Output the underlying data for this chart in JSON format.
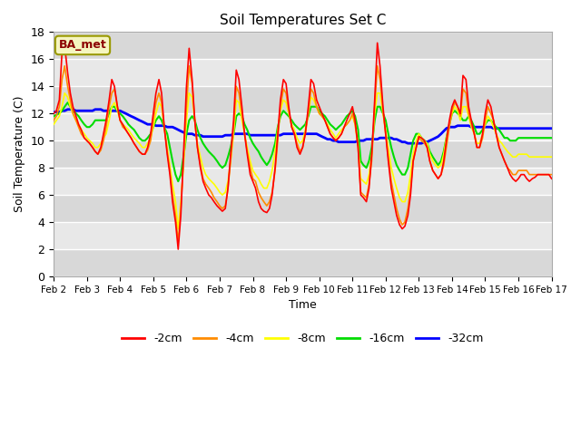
{
  "title": "Soil Temperatures Set C",
  "xlabel": "Time",
  "ylabel": "Soil Temperature (C)",
  "annotation": "BA_met",
  "ylim": [
    0,
    18
  ],
  "xlim": [
    0,
    15
  ],
  "xtick_labels": [
    "Feb 2",
    "Feb 3",
    "Feb 4",
    "Feb 5",
    "Feb 6",
    "Feb 7",
    "Feb 8",
    "Feb 9",
    "Feb 10",
    "Feb 11",
    "Feb 12",
    "Feb 13",
    "Feb 14",
    "Feb 15",
    "Feb 16",
    "Feb 17"
  ],
  "series_colors": {
    "-2cm": "#ff0000",
    "-4cm": "#ff8c00",
    "-8cm": "#ffff00",
    "-16cm": "#00dd00",
    "-32cm": "#0000ff"
  },
  "series_linewidths": {
    "-2cm": 1.2,
    "-4cm": 1.2,
    "-8cm": 1.2,
    "-16cm": 1.5,
    "-32cm": 2.0
  },
  "data": {
    "x_2cm": [
      0.0,
      0.08,
      0.17,
      0.25,
      0.33,
      0.42,
      0.5,
      0.58,
      0.67,
      0.75,
      0.83,
      0.92,
      1.0,
      1.08,
      1.17,
      1.25,
      1.33,
      1.42,
      1.5,
      1.58,
      1.67,
      1.75,
      1.83,
      1.92,
      2.0,
      2.08,
      2.17,
      2.25,
      2.33,
      2.42,
      2.5,
      2.58,
      2.67,
      2.75,
      2.83,
      2.92,
      3.0,
      3.08,
      3.17,
      3.25,
      3.33,
      3.42,
      3.5,
      3.58,
      3.67,
      3.75,
      3.83,
      3.92,
      4.0,
      4.08,
      4.17,
      4.25,
      4.33,
      4.42,
      4.5,
      4.58,
      4.67,
      4.75,
      4.83,
      4.92,
      5.0,
      5.08,
      5.17,
      5.25,
      5.33,
      5.42,
      5.5,
      5.58,
      5.67,
      5.75,
      5.83,
      5.92,
      6.0,
      6.08,
      6.17,
      6.25,
      6.33,
      6.42,
      6.5,
      6.58,
      6.67,
      6.75,
      6.83,
      6.92,
      7.0,
      7.08,
      7.17,
      7.25,
      7.33,
      7.42,
      7.5,
      7.58,
      7.67,
      7.75,
      7.83,
      7.92,
      8.0,
      8.08,
      8.17,
      8.25,
      8.33,
      8.42,
      8.5,
      8.58,
      8.67,
      8.75,
      8.83,
      8.92,
      9.0,
      9.08,
      9.17,
      9.25,
      9.33,
      9.42,
      9.5,
      9.58,
      9.67,
      9.75,
      9.83,
      9.92,
      10.0,
      10.08,
      10.17,
      10.25,
      10.33,
      10.42,
      10.5,
      10.58,
      10.67,
      10.75,
      10.83,
      10.92,
      11.0,
      11.08,
      11.17,
      11.25,
      11.33,
      11.42,
      11.5,
      11.58,
      11.67,
      11.75,
      11.83,
      11.92,
      12.0,
      12.08,
      12.17,
      12.25,
      12.33,
      12.42,
      12.5,
      12.58,
      12.67,
      12.75,
      12.83,
      12.92,
      13.0,
      13.08,
      13.17,
      13.25,
      13.33,
      13.42,
      13.5,
      13.58,
      13.67,
      13.75,
      13.83,
      13.92,
      14.0,
      14.08,
      14.17,
      14.25,
      14.33,
      14.42,
      14.5,
      14.58,
      14.67,
      14.75,
      14.83,
      14.92,
      15.0
    ],
    "-2cm": [
      12.0,
      12.2,
      13.0,
      16.5,
      17.0,
      15.0,
      13.5,
      12.5,
      11.8,
      11.2,
      10.8,
      10.2,
      10.0,
      9.8,
      9.5,
      9.2,
      9.0,
      9.5,
      10.5,
      11.5,
      13.0,
      14.5,
      14.0,
      12.5,
      11.5,
      11.2,
      10.8,
      10.5,
      10.2,
      9.8,
      9.5,
      9.2,
      9.0,
      9.0,
      9.5,
      10.5,
      12.0,
      13.5,
      14.5,
      13.5,
      11.0,
      9.0,
      7.5,
      5.5,
      4.0,
      2.0,
      4.5,
      9.5,
      14.0,
      16.8,
      14.5,
      11.5,
      9.5,
      8.0,
      7.0,
      6.5,
      6.0,
      5.8,
      5.5,
      5.2,
      5.0,
      4.8,
      5.0,
      6.5,
      9.0,
      11.5,
      15.2,
      14.5,
      12.5,
      10.5,
      9.0,
      7.5,
      7.0,
      6.5,
      5.5,
      5.0,
      4.8,
      4.7,
      5.0,
      6.0,
      8.0,
      10.5,
      13.0,
      14.5,
      14.2,
      12.5,
      11.0,
      10.5,
      9.5,
      9.0,
      9.5,
      10.5,
      12.5,
      14.5,
      14.2,
      13.0,
      12.5,
      12.0,
      11.5,
      11.0,
      10.5,
      10.2,
      10.0,
      10.2,
      10.5,
      11.0,
      11.5,
      12.0,
      12.5,
      11.5,
      9.5,
      6.0,
      5.8,
      5.5,
      6.5,
      9.0,
      13.0,
      17.2,
      15.5,
      12.5,
      10.5,
      8.5,
      6.5,
      5.5,
      4.5,
      3.8,
      3.5,
      3.7,
      4.5,
      6.0,
      8.5,
      9.5,
      10.3,
      10.2,
      10.0,
      9.5,
      8.5,
      7.8,
      7.5,
      7.2,
      7.5,
      8.5,
      10.0,
      11.5,
      12.5,
      13.0,
      12.5,
      12.0,
      14.8,
      14.5,
      12.5,
      11.5,
      10.5,
      9.5,
      9.5,
      10.5,
      12.0,
      13.0,
      12.5,
      11.5,
      10.5,
      9.5,
      9.0,
      8.5,
      8.0,
      7.5,
      7.2,
      7.0,
      7.2,
      7.5,
      7.5,
      7.2,
      7.0,
      7.2,
      7.3,
      7.5,
      7.5,
      7.5,
      7.5,
      7.5,
      7.2
    ],
    "-4cm": [
      11.5,
      11.8,
      12.5,
      14.5,
      15.5,
      14.0,
      13.0,
      12.0,
      11.5,
      11.0,
      10.5,
      10.2,
      10.0,
      9.8,
      9.5,
      9.2,
      9.0,
      9.3,
      10.0,
      11.0,
      12.5,
      13.5,
      13.8,
      12.5,
      11.5,
      11.0,
      10.8,
      10.5,
      10.2,
      9.8,
      9.5,
      9.2,
      9.0,
      9.0,
      9.3,
      10.0,
      11.5,
      12.8,
      13.5,
      12.8,
      11.0,
      9.2,
      7.8,
      6.0,
      4.5,
      2.5,
      5.0,
      9.0,
      12.5,
      15.5,
      14.2,
      11.5,
      9.5,
      8.2,
      7.2,
      6.8,
      6.5,
      6.2,
      5.8,
      5.5,
      5.2,
      5.0,
      5.2,
      6.5,
      8.5,
      11.0,
      14.0,
      13.5,
      12.0,
      10.5,
      9.2,
      8.0,
      7.2,
      7.0,
      6.2,
      5.8,
      5.5,
      5.2,
      5.5,
      6.2,
      7.8,
      10.0,
      12.5,
      13.8,
      13.5,
      12.2,
      11.0,
      10.5,
      9.8,
      9.2,
      9.5,
      10.5,
      12.0,
      13.8,
      13.5,
      12.5,
      12.0,
      11.8,
      11.5,
      11.0,
      10.5,
      10.2,
      10.0,
      10.2,
      10.5,
      11.0,
      11.2,
      11.5,
      12.0,
      11.2,
      9.5,
      6.2,
      6.0,
      5.8,
      6.8,
      8.5,
      12.5,
      15.5,
      14.5,
      12.2,
      10.5,
      8.8,
      7.0,
      6.0,
      5.0,
      4.2,
      3.8,
      4.0,
      5.0,
      6.5,
      8.5,
      9.5,
      10.2,
      10.0,
      9.8,
      9.5,
      8.5,
      7.8,
      7.5,
      7.2,
      7.5,
      8.2,
      9.5,
      11.0,
      12.2,
      12.8,
      12.5,
      11.8,
      13.8,
      13.5,
      12.0,
      11.2,
      10.5,
      9.5,
      9.5,
      10.2,
      11.5,
      12.5,
      12.0,
      11.5,
      10.5,
      9.5,
      9.0,
      8.5,
      8.0,
      7.8,
      7.5,
      7.5,
      7.8,
      7.8,
      7.8,
      7.8,
      7.5,
      7.5,
      7.5,
      7.5,
      7.5,
      7.5,
      7.5,
      7.5,
      7.5
    ],
    "-8cm": [
      11.2,
      11.5,
      11.8,
      12.5,
      13.5,
      13.2,
      12.5,
      12.0,
      11.5,
      11.2,
      10.8,
      10.5,
      10.2,
      10.0,
      9.8,
      9.5,
      9.5,
      9.8,
      10.2,
      10.5,
      11.5,
      12.5,
      12.8,
      12.2,
      11.5,
      11.2,
      11.0,
      10.8,
      10.5,
      10.2,
      10.0,
      9.8,
      9.5,
      9.5,
      9.8,
      10.2,
      11.0,
      12.0,
      12.8,
      12.5,
      11.0,
      9.5,
      8.2,
      6.8,
      5.5,
      3.5,
      5.5,
      8.5,
      11.5,
      13.5,
      13.2,
      11.5,
      9.8,
      8.8,
      8.0,
      7.5,
      7.2,
      7.0,
      6.8,
      6.5,
      6.2,
      6.0,
      6.2,
      7.0,
      8.5,
      10.5,
      13.0,
      12.8,
      11.5,
      10.5,
      9.5,
      8.5,
      7.8,
      7.5,
      7.2,
      6.8,
      6.5,
      6.5,
      7.0,
      7.8,
      9.2,
      10.8,
      12.2,
      13.0,
      12.8,
      12.0,
      11.2,
      10.8,
      10.2,
      9.8,
      10.0,
      10.8,
      12.0,
      13.2,
      13.0,
      12.5,
      12.0,
      11.8,
      11.5,
      11.2,
      10.8,
      10.5,
      10.2,
      10.5,
      10.8,
      11.0,
      11.2,
      11.5,
      11.8,
      11.2,
      9.8,
      7.2,
      7.0,
      6.8,
      7.5,
      9.0,
      12.0,
      13.5,
      13.5,
      12.0,
      10.8,
      9.5,
      8.0,
      7.2,
      6.5,
      5.8,
      5.5,
      5.5,
      6.2,
      7.5,
      9.0,
      10.0,
      10.5,
      10.2,
      10.0,
      9.8,
      9.0,
      8.5,
      8.2,
      8.0,
      8.2,
      9.0,
      10.2,
      11.2,
      12.0,
      12.5,
      12.2,
      11.5,
      12.5,
      12.5,
      11.8,
      11.0,
      10.5,
      9.8,
      9.8,
      10.5,
      11.2,
      11.8,
      11.5,
      11.0,
      10.5,
      10.0,
      9.8,
      9.5,
      9.2,
      9.0,
      8.8,
      8.8,
      9.0,
      9.0,
      9.0,
      9.0,
      8.8,
      8.8,
      8.8,
      8.8,
      8.8,
      8.8,
      8.8,
      8.8,
      8.8
    ],
    "-16cm": [
      11.8,
      11.9,
      12.0,
      12.2,
      12.5,
      12.8,
      12.5,
      12.2,
      12.0,
      11.8,
      11.5,
      11.2,
      11.0,
      11.0,
      11.2,
      11.5,
      11.5,
      11.5,
      11.5,
      11.5,
      12.0,
      12.5,
      12.5,
      12.2,
      12.0,
      11.8,
      11.5,
      11.2,
      11.0,
      10.8,
      10.5,
      10.2,
      10.0,
      10.0,
      10.2,
      10.5,
      11.0,
      11.5,
      11.8,
      11.5,
      11.0,
      10.5,
      9.5,
      8.5,
      7.5,
      7.0,
      7.5,
      9.0,
      10.5,
      11.5,
      11.8,
      11.5,
      10.8,
      10.2,
      9.8,
      9.5,
      9.2,
      9.0,
      8.8,
      8.5,
      8.2,
      8.0,
      8.2,
      8.8,
      9.5,
      10.5,
      11.8,
      12.0,
      11.8,
      11.2,
      10.8,
      10.2,
      9.8,
      9.5,
      9.2,
      8.8,
      8.5,
      8.2,
      8.5,
      9.0,
      9.8,
      11.0,
      11.8,
      12.2,
      12.0,
      11.8,
      11.5,
      11.2,
      11.0,
      10.8,
      11.0,
      11.2,
      11.8,
      12.5,
      12.5,
      12.5,
      12.2,
      12.0,
      11.8,
      11.5,
      11.2,
      11.0,
      10.8,
      11.0,
      11.2,
      11.5,
      11.8,
      12.0,
      12.2,
      11.8,
      10.8,
      8.5,
      8.2,
      8.0,
      8.5,
      9.5,
      11.5,
      12.5,
      12.5,
      12.0,
      11.5,
      10.5,
      9.5,
      8.8,
      8.2,
      7.8,
      7.5,
      7.5,
      8.0,
      9.0,
      10.0,
      10.5,
      10.5,
      10.2,
      10.0,
      9.8,
      9.2,
      8.8,
      8.5,
      8.2,
      8.5,
      9.2,
      10.2,
      11.2,
      12.0,
      12.2,
      12.0,
      11.8,
      11.5,
      11.5,
      11.8,
      11.5,
      11.0,
      10.5,
      10.5,
      10.8,
      11.2,
      11.5,
      11.5,
      11.2,
      11.0,
      10.8,
      10.5,
      10.2,
      10.2,
      10.0,
      10.0,
      10.0,
      10.2,
      10.2,
      10.2,
      10.2,
      10.2,
      10.2,
      10.2,
      10.2,
      10.2,
      10.2,
      10.2,
      10.2,
      10.2
    ],
    "-32cm": [
      12.1,
      12.1,
      12.1,
      12.2,
      12.2,
      12.3,
      12.3,
      12.3,
      12.2,
      12.2,
      12.2,
      12.2,
      12.2,
      12.2,
      12.2,
      12.3,
      12.3,
      12.3,
      12.2,
      12.2,
      12.2,
      12.2,
      12.2,
      12.2,
      12.2,
      12.1,
      12.0,
      11.9,
      11.8,
      11.7,
      11.6,
      11.5,
      11.4,
      11.3,
      11.2,
      11.2,
      11.2,
      11.1,
      11.1,
      11.1,
      11.1,
      11.0,
      11.0,
      11.0,
      10.9,
      10.8,
      10.7,
      10.6,
      10.5,
      10.5,
      10.5,
      10.4,
      10.4,
      10.4,
      10.3,
      10.3,
      10.3,
      10.3,
      10.3,
      10.3,
      10.3,
      10.3,
      10.4,
      10.4,
      10.4,
      10.5,
      10.5,
      10.5,
      10.5,
      10.5,
      10.5,
      10.4,
      10.4,
      10.4,
      10.4,
      10.4,
      10.4,
      10.4,
      10.4,
      10.4,
      10.4,
      10.4,
      10.4,
      10.5,
      10.5,
      10.5,
      10.5,
      10.5,
      10.5,
      10.5,
      10.5,
      10.5,
      10.5,
      10.5,
      10.5,
      10.5,
      10.4,
      10.3,
      10.2,
      10.1,
      10.1,
      10.0,
      10.0,
      9.9,
      9.9,
      9.9,
      9.9,
      9.9,
      9.9,
      9.9,
      10.0,
      10.0,
      10.0,
      10.1,
      10.1,
      10.1,
      10.1,
      10.1,
      10.2,
      10.2,
      10.2,
      10.2,
      10.2,
      10.1,
      10.1,
      10.0,
      9.9,
      9.9,
      9.8,
      9.8,
      9.8,
      9.8,
      9.8,
      9.8,
      9.9,
      9.9,
      10.0,
      10.1,
      10.2,
      10.3,
      10.5,
      10.7,
      10.9,
      11.0,
      11.0,
      11.0,
      11.1,
      11.1,
      11.1,
      11.1,
      11.1,
      11.0,
      11.0,
      11.0,
      11.0,
      11.0,
      11.0,
      11.0,
      11.0,
      10.9,
      10.9,
      10.9,
      10.9,
      10.9,
      10.9,
      10.9,
      10.9,
      10.9,
      10.9,
      10.9,
      10.9,
      10.9,
      10.9,
      10.9,
      10.9,
      10.9,
      10.9,
      10.9,
      10.9,
      10.9,
      10.9
    ]
  }
}
